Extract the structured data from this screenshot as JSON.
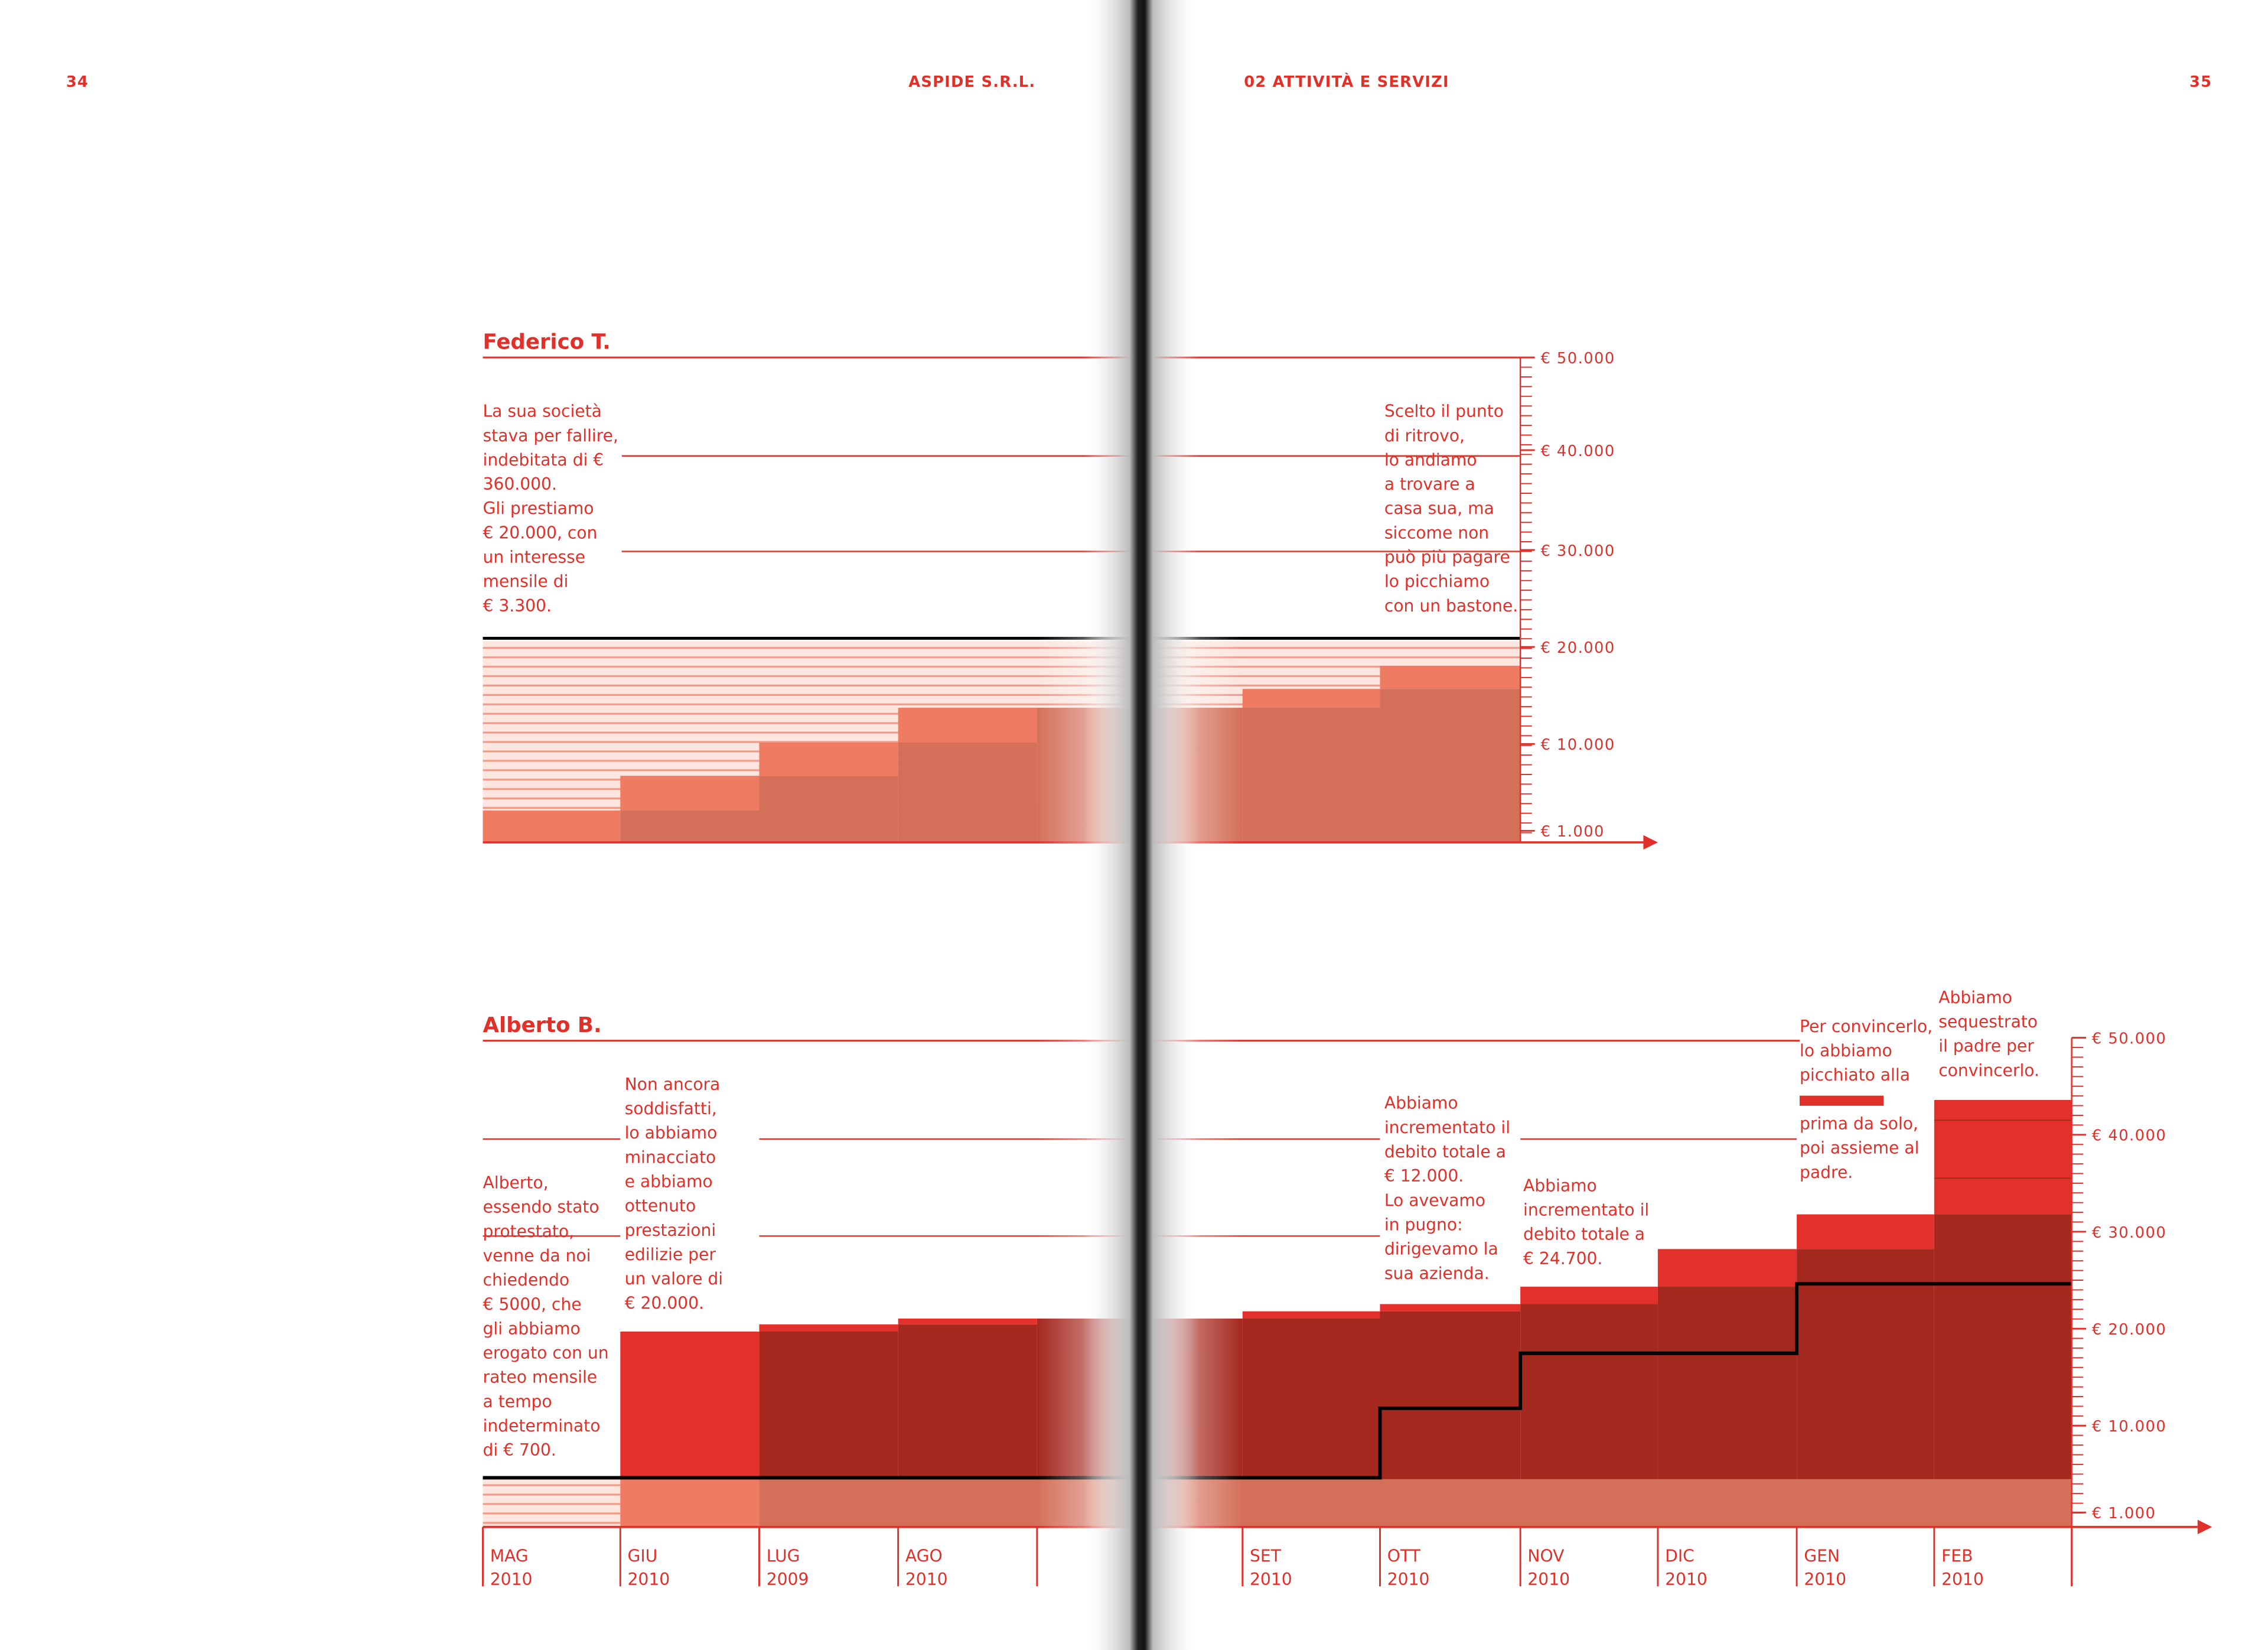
{
  "header": {
    "page_left": "34",
    "running_left": "ASPIDE S.R.L.",
    "running_right": "02 ATTIVITÀ E SERVIZI",
    "page_right": "35"
  },
  "sections": [
    {
      "title": "Federico T.",
      "axis_labels": [
        "€ 50.000",
        "€ 40.000",
        "€ 30.000",
        "€ 20.000",
        "€ 10.000",
        "€ 1.000"
      ],
      "notes": [
        {
          "lines": [
            "La sua società",
            "stava per fallire,",
            "indebitata di €",
            "360.000.",
            "Gli prestiamo",
            "€ 20.000, con",
            "un interesse",
            "mensile di",
            "€ 3.300."
          ]
        },
        {
          "lines": [
            "Scelto il punto",
            "di ritrovo,",
            "lo andiamo",
            "a trovare a",
            "casa sua, ma",
            "siccome non",
            "può più pagare",
            "lo picchiamo",
            "con un bastone."
          ]
        }
      ]
    },
    {
      "title": "Alberto B.",
      "axis_labels": [
        "€ 50.000",
        "€ 40.000",
        "€ 30.000",
        "€ 20.000",
        "€ 10.000",
        "€ 1.000"
      ],
      "notes": [
        {
          "lines": [
            "Alberto,",
            "essendo stato",
            "protestato,",
            "venne da noi",
            "chiedendo",
            "€ 5000, che",
            "gli abbiamo",
            "erogato con un",
            "rateo mensile",
            "a tempo",
            "indeterminato",
            "di € 700."
          ]
        },
        {
          "lines": [
            "Non ancora",
            "soddisfatti,",
            "lo abbiamo",
            "minacciato",
            "e abbiamo",
            "ottenuto",
            "prestazioni",
            "edilizie per",
            "un valore di",
            "€ 20.000."
          ]
        },
        {
          "lines": [
            "Abbiamo",
            "incrementato il",
            "debito totale a",
            "€ 12.000.",
            "Lo avevamo",
            "in pugno:",
            "dirigevamo la",
            "sua azienda."
          ]
        },
        {
          "lines": [
            "Abbiamo",
            "incrementato il",
            "debito totale a",
            "€ 24.700."
          ]
        },
        {
          "lines": [
            "Per convincerlo,",
            "lo abbiamo",
            "picchiato alla",
            "prima da solo,",
            "poi assieme al",
            "padre."
          ]
        },
        {
          "lines": [
            "Abbiamo",
            "sequestrato",
            "il padre per",
            "convincerlo."
          ]
        }
      ],
      "months": [
        [
          "MAG",
          "2010"
        ],
        [
          "GIU",
          "2010"
        ],
        [
          "LUG",
          "2009"
        ],
        [
          "AGO",
          "2010"
        ],
        [
          "SET",
          "2010"
        ],
        [
          "OTT",
          "2010"
        ],
        [
          "NOV",
          "2010"
        ],
        [
          "DIC",
          "2010"
        ],
        [
          "GEN",
          "2010"
        ],
        [
          "FEB",
          "2010"
        ]
      ]
    }
  ]
}
